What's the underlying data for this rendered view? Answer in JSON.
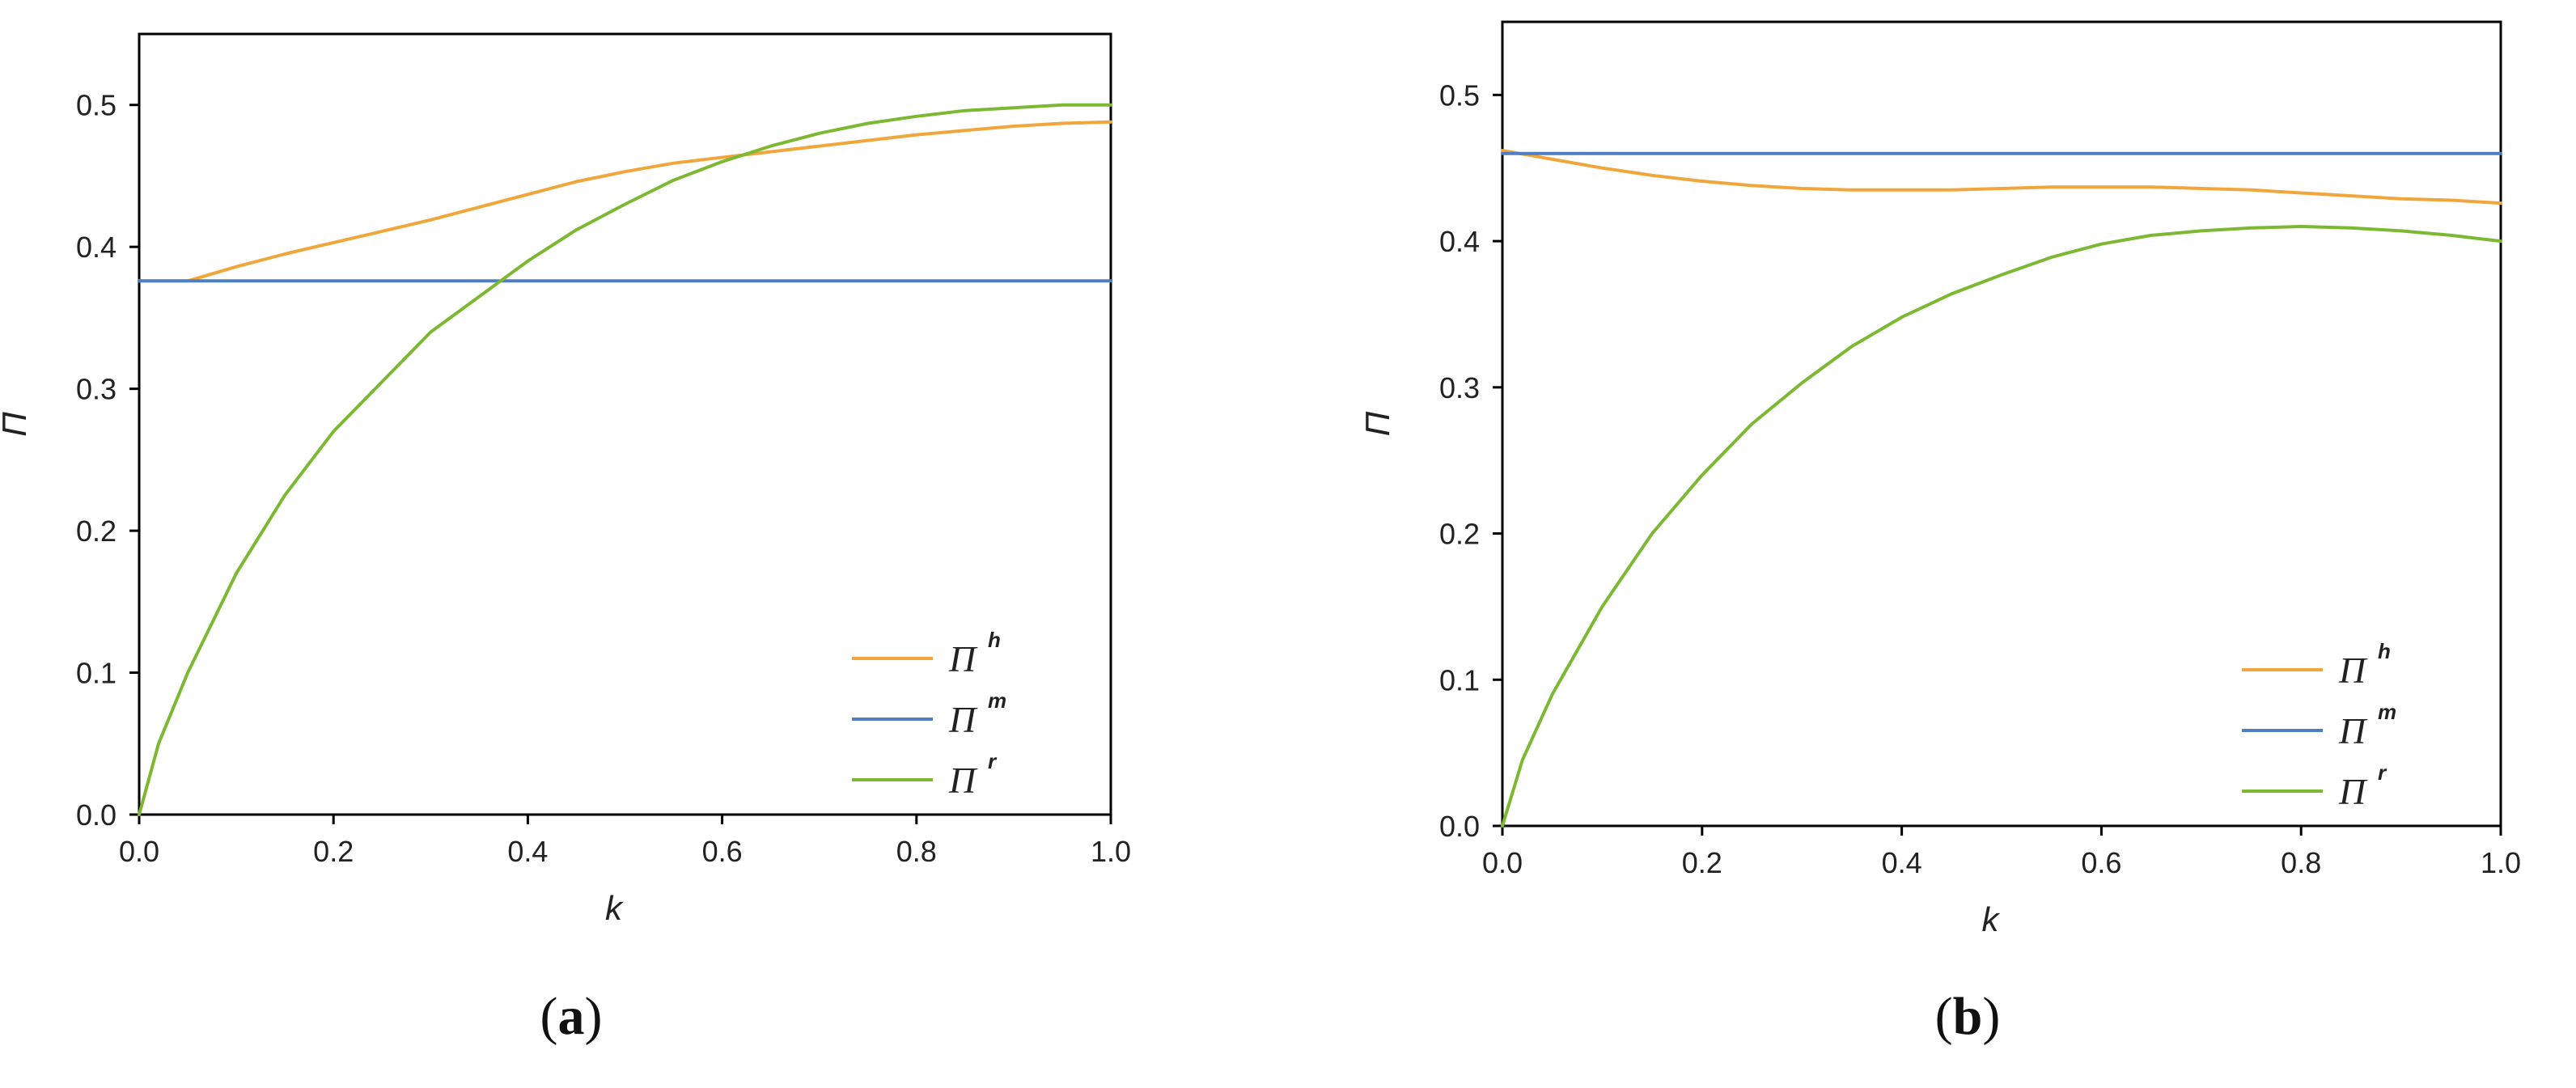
{
  "colors": {
    "h": "#f0a63a",
    "m": "#4f7fc0",
    "r": "#7cb832",
    "axis": "#000000"
  },
  "chart_data": [
    {
      "type": "line",
      "panel": "(a)",
      "panel_letter": "a",
      "xlabel": "k",
      "ylabel": "Π",
      "xlim": [
        0.0,
        1.0
      ],
      "ylim": [
        0.0,
        0.55
      ],
      "xticks": [
        "0.0",
        "0.2",
        "0.4",
        "0.6",
        "0.8",
        "1.0"
      ],
      "yticks": [
        "0.0",
        "0.1",
        "0.2",
        "0.3",
        "0.4",
        "0.5"
      ],
      "grid": false,
      "legend_position": "bottom-right",
      "series": [
        {
          "name": "Π",
          "sup": "h",
          "color_key": "h",
          "x": [
            0.0,
            0.05,
            0.1,
            0.15,
            0.2,
            0.25,
            0.3,
            0.35,
            0.4,
            0.45,
            0.5,
            0.55,
            0.6,
            0.65,
            0.7,
            0.75,
            0.8,
            0.85,
            0.9,
            0.95,
            1.0
          ],
          "y": [
            0.376,
            0.376,
            0.386,
            0.395,
            0.403,
            0.411,
            0.419,
            0.428,
            0.437,
            0.446,
            0.453,
            0.459,
            0.463,
            0.467,
            0.471,
            0.475,
            0.479,
            0.482,
            0.485,
            0.487,
            0.488
          ]
        },
        {
          "name": "Π",
          "sup": "m",
          "color_key": "m",
          "x": [
            0.0,
            1.0
          ],
          "y": [
            0.376,
            0.376
          ]
        },
        {
          "name": "Π",
          "sup": "r",
          "color_key": "r",
          "x": [
            0.0,
            0.02,
            0.05,
            0.1,
            0.15,
            0.2,
            0.25,
            0.3,
            0.35,
            0.4,
            0.45,
            0.5,
            0.55,
            0.6,
            0.65,
            0.7,
            0.75,
            0.8,
            0.85,
            0.9,
            0.95,
            1.0
          ],
          "y": [
            0.0,
            0.05,
            0.1,
            0.17,
            0.225,
            0.27,
            0.305,
            0.34,
            0.365,
            0.39,
            0.412,
            0.43,
            0.447,
            0.46,
            0.471,
            0.48,
            0.487,
            0.492,
            0.496,
            0.498,
            0.5,
            0.5
          ]
        }
      ]
    },
    {
      "type": "line",
      "panel": "(b)",
      "panel_letter": "b",
      "xlabel": "k",
      "ylabel": "Π",
      "xlim": [
        0.0,
        1.0
      ],
      "ylim": [
        0.0,
        0.55
      ],
      "xticks": [
        "0.0",
        "0.2",
        "0.4",
        "0.6",
        "0.8",
        "1.0"
      ],
      "yticks": [
        "0.0",
        "0.1",
        "0.2",
        "0.3",
        "0.4",
        "0.5"
      ],
      "grid": false,
      "legend_position": "bottom-right",
      "series": [
        {
          "name": "Π",
          "sup": "h",
          "color_key": "h",
          "x": [
            0.0,
            0.05,
            0.1,
            0.15,
            0.2,
            0.25,
            0.3,
            0.35,
            0.4,
            0.45,
            0.5,
            0.55,
            0.6,
            0.65,
            0.7,
            0.75,
            0.8,
            0.85,
            0.9,
            0.95,
            1.0
          ],
          "y": [
            0.462,
            0.456,
            0.45,
            0.445,
            0.441,
            0.438,
            0.436,
            0.435,
            0.435,
            0.435,
            0.436,
            0.437,
            0.437,
            0.437,
            0.436,
            0.435,
            0.433,
            0.431,
            0.429,
            0.428,
            0.426
          ]
        },
        {
          "name": "Π",
          "sup": "m",
          "color_key": "m",
          "x": [
            0.0,
            1.0
          ],
          "y": [
            0.46,
            0.46
          ]
        },
        {
          "name": "Π",
          "sup": "r",
          "color_key": "r",
          "x": [
            0.0,
            0.02,
            0.05,
            0.1,
            0.15,
            0.2,
            0.25,
            0.3,
            0.35,
            0.4,
            0.45,
            0.5,
            0.55,
            0.6,
            0.65,
            0.7,
            0.75,
            0.8,
            0.85,
            0.9,
            0.95,
            1.0
          ],
          "y": [
            0.0,
            0.045,
            0.09,
            0.15,
            0.2,
            0.24,
            0.275,
            0.303,
            0.328,
            0.348,
            0.364,
            0.377,
            0.389,
            0.398,
            0.404,
            0.407,
            0.409,
            0.41,
            0.409,
            0.407,
            0.404,
            0.4
          ]
        }
      ]
    }
  ]
}
